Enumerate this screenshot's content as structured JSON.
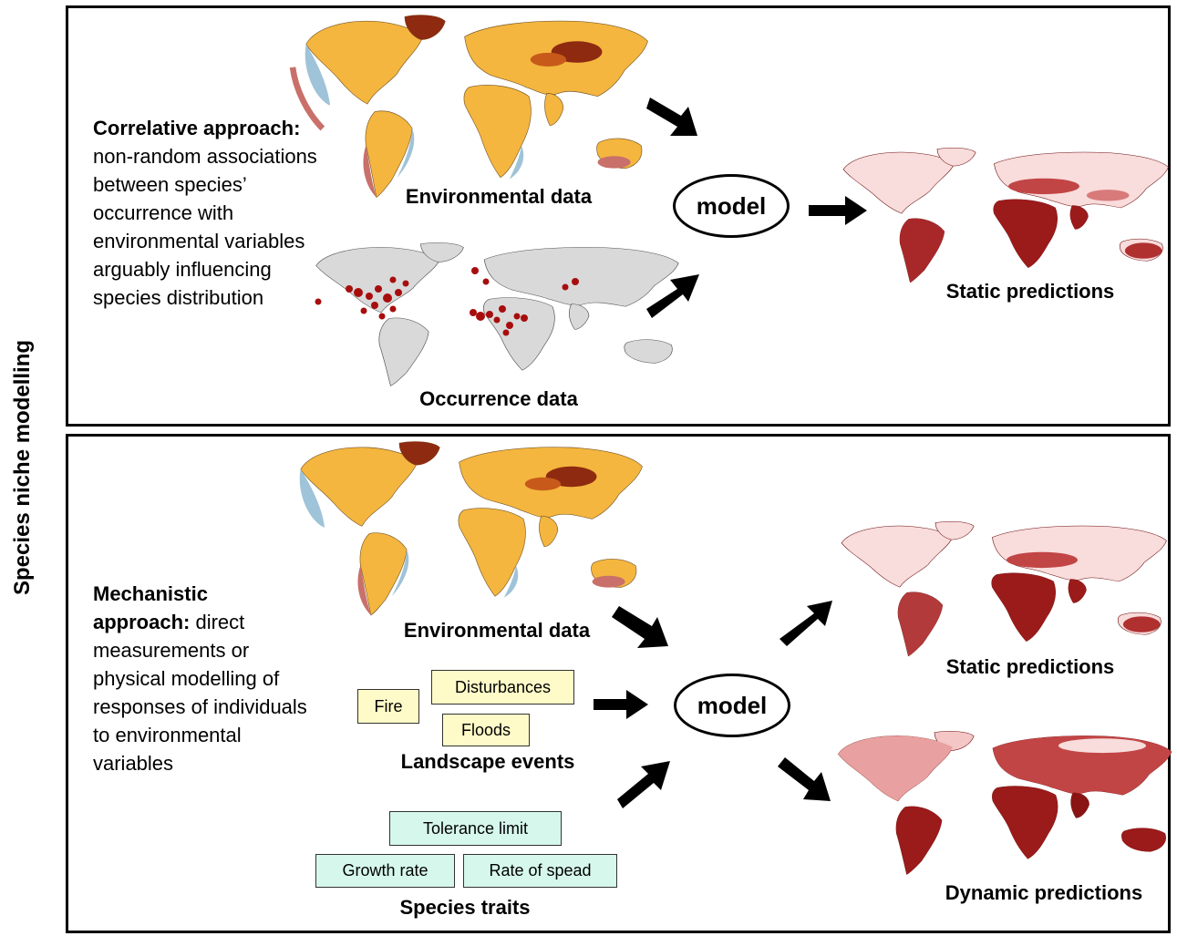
{
  "side_title": "Species niche modelling",
  "correlative": {
    "heading": "Correlative approach:",
    "body": "non-random associations between species’ occurrence with environmental variables arguably influencing species distribution",
    "env_label": "Environmental data",
    "occ_label": "Occurrence data",
    "model_label": "model",
    "static_label": "Static predictions"
  },
  "mechanistic": {
    "heading": "Mechanistic approach:",
    "body": "direct measurements or physical modelling of responses of individuals to environmental variables",
    "env_label": "Environmental data",
    "events": [
      "Fire",
      "Disturbances",
      "Floods"
    ],
    "events_label": "Landscape events",
    "traits": [
      "Tolerance limit",
      "Growth rate",
      "Rate of spead"
    ],
    "traits_label": "Species traits",
    "model_label": "model",
    "static_label": "Static predictions",
    "dynamic_label": "Dynamic predictions"
  },
  "colors": {
    "env_land": "#f4b63f",
    "env_hot": "#8e2a10",
    "env_cold": "#9fc3d8",
    "occ_land": "#d9d9d9",
    "occ_point": "#a80d0d",
    "pred_low": "#f9dcdc",
    "pred_high": "#9b1a1a",
    "event_box": "#fffbc9",
    "trait_box": "#d6f7ec"
  }
}
